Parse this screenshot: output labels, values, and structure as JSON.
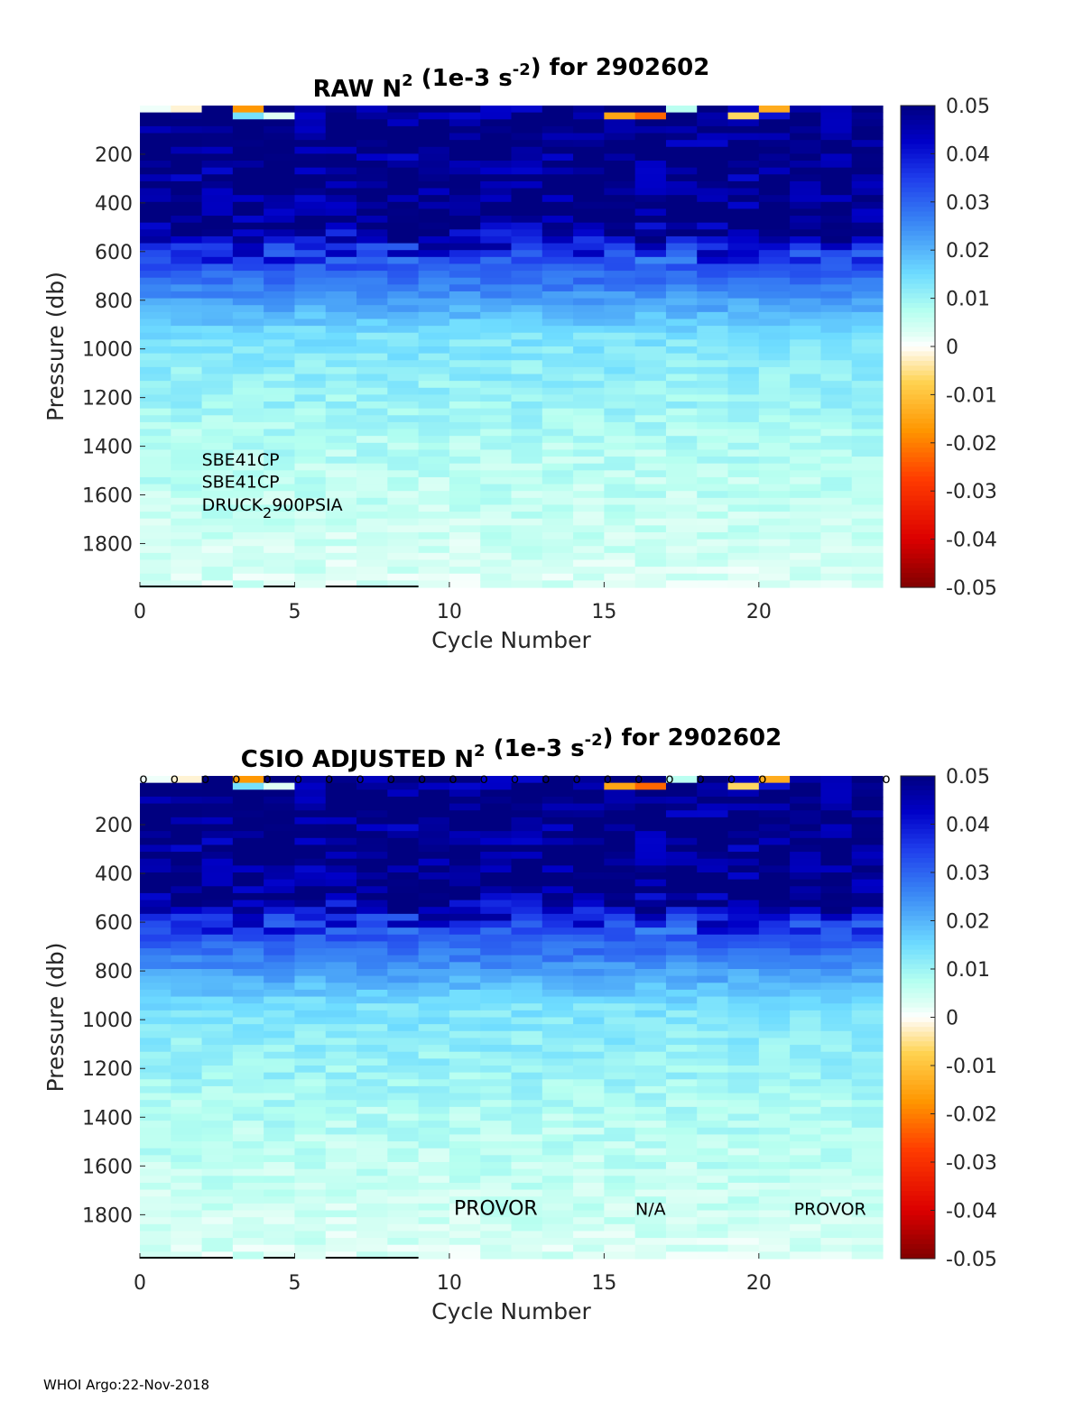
{
  "footer": "WHOI Argo:22-Nov-2018",
  "colorbar": {
    "ticks": [
      "0.05",
      "0.04",
      "0.03",
      "0.02",
      "0.01",
      "0",
      "-0.01",
      "-0.02",
      "-0.03",
      "-0.04",
      "-0.05"
    ]
  },
  "chart_data": [
    {
      "type": "heatmap",
      "title_parts": {
        "a": "RAW N",
        "sup1": "2",
        "b": " (1e-3 s",
        "sup2": "-2",
        "c": ") for 2902602"
      },
      "xlabel": "Cycle Number",
      "ylabel": "Pressure (db)",
      "xlim": [
        0,
        24
      ],
      "ylim": [
        0,
        1980
      ],
      "xticks": [
        0,
        5,
        10,
        15,
        20
      ],
      "yticks": [
        200,
        400,
        600,
        800,
        1000,
        1200,
        1400,
        1600,
        1800
      ],
      "clim": [
        -0.05,
        0.05
      ],
      "colormap": "jet-with-white-center",
      "annotations": [
        {
          "text": "SBE41CP",
          "x": 2,
          "y": 1480
        },
        {
          "text": "SBE41CP",
          "x": 2,
          "y": 1570
        },
        {
          "text": "DRUCK",
          "sub": "2",
          "rest": "900PSIA",
          "x": 2,
          "y": 1665
        }
      ],
      "profile_markers": false,
      "series_segments": [],
      "value_profiles_note": "N2 decreases from ~0.05 near surface to ~0.005 at depth"
    },
    {
      "type": "heatmap",
      "title_parts": {
        "a": "CSIO  ADJUSTED N",
        "sup1": "2",
        "b": " (1e-3 s",
        "sup2": "-2",
        "c": ") for 2902602"
      },
      "xlabel": "Cycle Number",
      "ylabel": "Pressure (db)",
      "xlim": [
        0,
        24
      ],
      "ylim": [
        0,
        1980
      ],
      "xticks": [
        0,
        5,
        10,
        15,
        20
      ],
      "yticks": [
        200,
        400,
        600,
        800,
        1000,
        1200,
        1400,
        1600,
        1800
      ],
      "clim": [
        -0.05,
        0.05
      ],
      "colormap": "jet-with-white-center",
      "annotations": [
        {
          "text": "PROVOR",
          "x": 11.5,
          "y": 1800,
          "size": 22
        },
        {
          "text": "N/A",
          "x": 16.5,
          "y": 1800,
          "size": 19
        },
        {
          "text": "PROVOR",
          "x": 22.3,
          "y": 1800,
          "size": 19
        }
      ],
      "profile_markers": true,
      "marker_symbol": "o",
      "marker_cycles": [
        0,
        1,
        2,
        3,
        4,
        5,
        6,
        7,
        8,
        9,
        10,
        11,
        12,
        13,
        14,
        15,
        16,
        17,
        18,
        19,
        20,
        24
      ]
    }
  ]
}
